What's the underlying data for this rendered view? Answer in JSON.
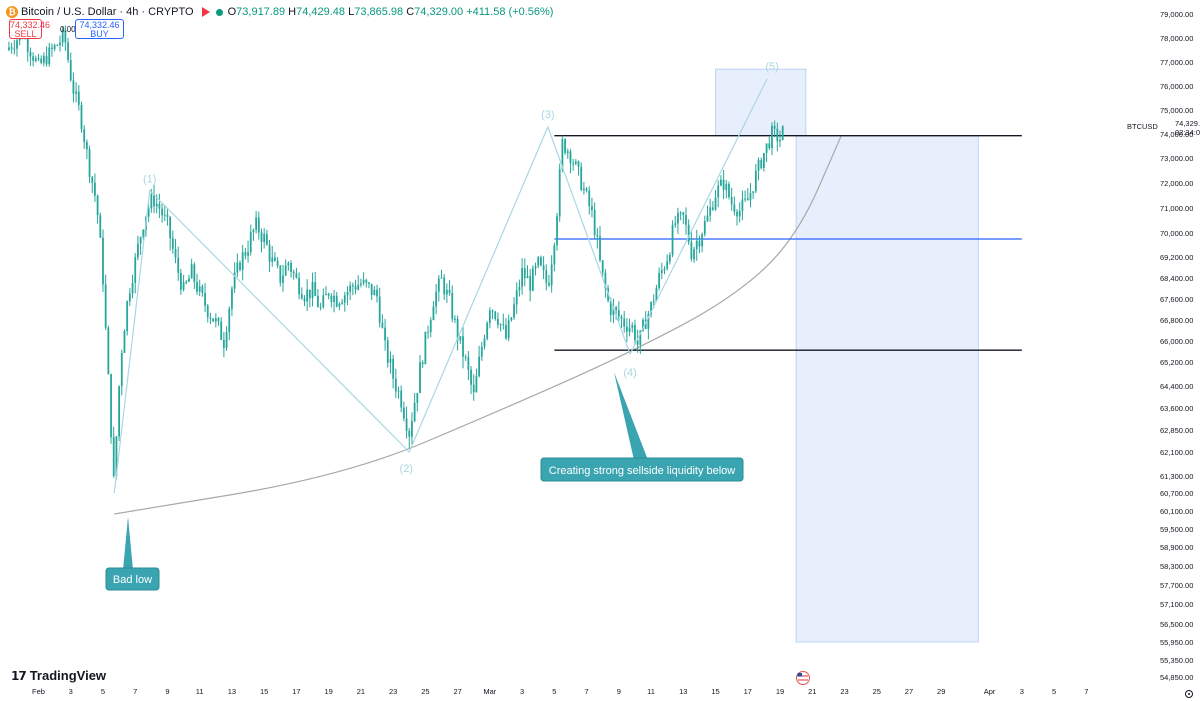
{
  "header": {
    "symbol_title": "Bitcoin / U.S. Dollar · 4h · CRYPTO",
    "open_label": "O",
    "open": "73,917.89",
    "high_label": "H",
    "high": "74,429.48",
    "low_label": "L",
    "low": "73,865.98",
    "close_label": "C",
    "close": "74,329.00",
    "change": "+411.58 (+0.56%)",
    "sell_price": "74,332.46",
    "sell_label": "SELL",
    "buy_price": "74,332.46",
    "buy_label": "BUY",
    "spread": "0.00"
  },
  "brand": "TradingView",
  "price_tag": {
    "symbol": "BTCUSD",
    "price": "74,329.00",
    "countdown": "02:34:08"
  },
  "colors": {
    "candle": "#26a69a",
    "wave_line": "#a8d8e3",
    "wave_label": "#a8d8e3",
    "callout": "#3aa5b0",
    "zone_fill": "#e3ecfb",
    "level_black": "#131722",
    "level_blue": "#2962ff",
    "curve": "#a8a8a8"
  },
  "annotations": {
    "bad_low": "Bad low",
    "sellside": "Creating strong sellside liquidity below"
  },
  "chart_data": {
    "type": "candlestick",
    "timeframe": "4h",
    "ylim": [
      54850,
      79000
    ],
    "y_ticks": [
      79000,
      78000,
      77000,
      76000,
      75000,
      74000,
      73000,
      72000,
      71000,
      70000,
      69200,
      68400,
      67600,
      66800,
      66000,
      65200,
      64400,
      63600,
      62850,
      62100,
      61300,
      60700,
      60100,
      59500,
      58900,
      58300,
      57700,
      57100,
      56500,
      55950,
      55350,
      54850
    ],
    "y_tick_labels": [
      "79,000.00",
      "78,000.00",
      "77,000.00",
      "76,000.00",
      "75,000.00",
      "74,000.00",
      "73,000.00",
      "72,000.00",
      "71,000.00",
      "70,000.00",
      "69,200.00",
      "68,400.00",
      "67,600.00",
      "66,800.00",
      "66,000.00",
      "65,200.00",
      "64,400.00",
      "63,600.00",
      "62,850.00",
      "62,100.00",
      "61,300.00",
      "60,700.00",
      "60,100.00",
      "59,500.00",
      "58,900.00",
      "58,300.00",
      "57,700.00",
      "57,100.00",
      "56,500.00",
      "55,950.00",
      "55,350.00",
      "54,850.00"
    ],
    "x_tick_labels": [
      "Feb",
      "3",
      "5",
      "7",
      "9",
      "11",
      "13",
      "15",
      "17",
      "19",
      "21",
      "23",
      "25",
      "27",
      "Mar",
      "3",
      "5",
      "7",
      "9",
      "11",
      "13",
      "15",
      "17",
      "19",
      "21",
      "23",
      "25",
      "27",
      "29",
      "Apr",
      "3",
      "5",
      "7"
    ],
    "x_tick_days": [
      1,
      3,
      5,
      7,
      9,
      11,
      13,
      15,
      17,
      19,
      21,
      23,
      25,
      27,
      29,
      31,
      33,
      35,
      37,
      39,
      41,
      43,
      45,
      47,
      49,
      51,
      53,
      55,
      57,
      60,
      62,
      64,
      66
    ],
    "xlim_days": [
      -1,
      68
    ],
    "price_path": [
      [
        -1,
        77500
      ],
      [
        0,
        78200
      ],
      [
        1,
        76800
      ],
      [
        2,
        77600
      ],
      [
        2.6,
        78100
      ],
      [
        3.1,
        76000
      ],
      [
        3.6,
        74800
      ],
      [
        4.1,
        72800
      ],
      [
        4.6,
        71200
      ],
      [
        5,
        68400
      ],
      [
        5.25,
        65400
      ],
      [
        5.5,
        62900
      ],
      [
        5.7,
        60700
      ],
      [
        5.9,
        63600
      ],
      [
        6.2,
        66000
      ],
      [
        6.6,
        67900
      ],
      [
        7.1,
        69300
      ],
      [
        7.6,
        70700
      ],
      [
        8.1,
        71400
      ],
      [
        8.5,
        71000
      ],
      [
        9,
        70300
      ],
      [
        9.5,
        69000
      ],
      [
        10,
        67900
      ],
      [
        10.5,
        68600
      ],
      [
        11,
        67800
      ],
      [
        11.5,
        67200
      ],
      [
        12,
        66700
      ],
      [
        12.5,
        66000
      ],
      [
        13,
        68000
      ],
      [
        13.5,
        69000
      ],
      [
        14,
        69600
      ],
      [
        14.5,
        70300
      ],
      [
        15,
        69800
      ],
      [
        15.5,
        69000
      ],
      [
        16,
        68400
      ],
      [
        16.5,
        69000
      ],
      [
        17,
        68300
      ],
      [
        17.5,
        67800
      ],
      [
        18,
        67900
      ],
      [
        18.5,
        67200
      ],
      [
        19,
        67900
      ],
      [
        19.5,
        67600
      ],
      [
        20,
        67800
      ],
      [
        20.5,
        68100
      ],
      [
        21,
        68200
      ],
      [
        21.5,
        68000
      ],
      [
        22,
        67700
      ],
      [
        22.5,
        65700
      ],
      [
        23,
        64700
      ],
      [
        23.5,
        63900
      ],
      [
        24,
        62800
      ],
      [
        24.5,
        64400
      ],
      [
        25,
        66000
      ],
      [
        25.5,
        67600
      ],
      [
        26,
        68300
      ],
      [
        26.5,
        67500
      ],
      [
        27,
        66200
      ],
      [
        27.5,
        65200
      ],
      [
        28,
        64000
      ],
      [
        28.5,
        65800
      ],
      [
        29,
        67400
      ],
      [
        29.5,
        66900
      ],
      [
        30,
        66100
      ],
      [
        30.5,
        67300
      ],
      [
        31,
        68600
      ],
      [
        31.5,
        68200
      ],
      [
        32,
        68900
      ],
      [
        32.6,
        68100
      ],
      [
        33.1,
        70400
      ],
      [
        33.5,
        73600
      ],
      [
        33.9,
        73300
      ],
      [
        34.4,
        72500
      ],
      [
        34.9,
        71600
      ],
      [
        35.4,
        70600
      ],
      [
        35.9,
        68700
      ],
      [
        36.4,
        67300
      ],
      [
        36.9,
        67000
      ],
      [
        37.3,
        66700
      ],
      [
        37.9,
        66500
      ],
      [
        38.2,
        65800
      ],
      [
        38.6,
        66700
      ],
      [
        39,
        67300
      ],
      [
        39.5,
        68400
      ],
      [
        40,
        69200
      ],
      [
        40.5,
        70400
      ],
      [
        41,
        70600
      ],
      [
        41.5,
        69400
      ],
      [
        42,
        69900
      ],
      [
        42.5,
        70600
      ],
      [
        43,
        71600
      ],
      [
        43.5,
        72000
      ],
      [
        44,
        71200
      ],
      [
        44.5,
        70900
      ],
      [
        45,
        71300
      ],
      [
        45.5,
        72300
      ],
      [
        46,
        73200
      ],
      [
        46.5,
        74000
      ],
      [
        47,
        73800
      ],
      [
        47.3,
        74329
      ]
    ],
    "wave_points": [
      {
        "label": "(1)",
        "day": 7.9,
        "price": 71700
      },
      {
        "label": "(2)",
        "day": 24,
        "price": 62100
      },
      {
        "label": "(3)",
        "day": 32.6,
        "price": 74300
      },
      {
        "label": "(4)",
        "day": 37.7,
        "price": 65500
      },
      {
        "label": "(5)",
        "day": 46.2,
        "price": 76300
      }
    ],
    "wave_path": [
      [
        5.7,
        60700
      ],
      [
        7.9,
        71700
      ],
      [
        24,
        62100
      ],
      [
        32.6,
        74300
      ],
      [
        37.7,
        65500
      ],
      [
        46.2,
        76300
      ]
    ],
    "horizontal_levels": [
      {
        "price": 73930,
        "color": "black",
        "from_day": 33,
        "to_day": 62
      },
      {
        "price": 69800,
        "color": "blue",
        "from_day": 33,
        "to_day": 62
      },
      {
        "price": 65650,
        "color": "black",
        "from_day": 33,
        "to_day": 62
      }
    ],
    "zones": [
      {
        "from_day": 43,
        "to_day": 48.6,
        "top": 76700,
        "bottom": 73930
      },
      {
        "from_day": 48,
        "to_day": 59.3,
        "top": 73930,
        "bottom": 55950
      }
    ],
    "curve_path": [
      [
        5.7,
        60000
      ],
      [
        20,
        61300
      ],
      [
        30,
        63600
      ],
      [
        37.5,
        65500
      ],
      [
        44,
        67600
      ],
      [
        48,
        69800
      ],
      [
        50.8,
        73930
      ]
    ]
  }
}
